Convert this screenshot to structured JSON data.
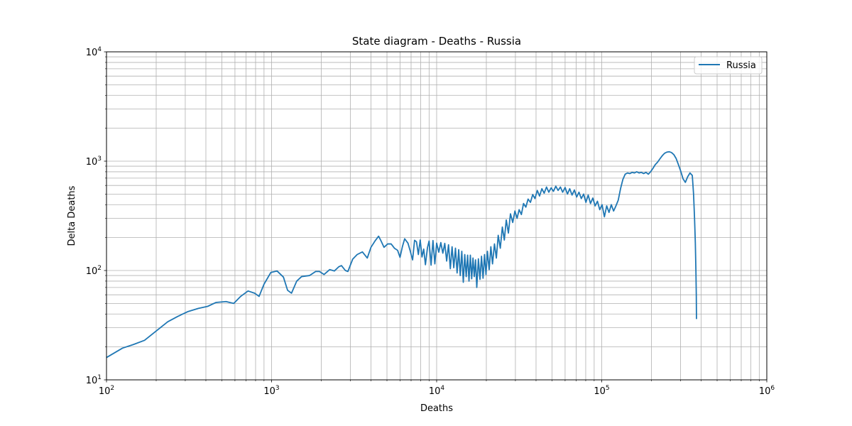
{
  "chart_data": {
    "type": "line",
    "title": "State diagram - Deaths - Russia",
    "xlabel": "Deaths",
    "ylabel": "Delta Deaths",
    "xscale": "log",
    "yscale": "log",
    "xlim": [
      100,
      1000000
    ],
    "ylim": [
      10,
      10000
    ],
    "grid": true,
    "grid_which": "both",
    "legend_position": "top-right",
    "x_ticks": [
      {
        "base": "10",
        "exp": "2"
      },
      {
        "base": "10",
        "exp": "3"
      },
      {
        "base": "10",
        "exp": "4"
      },
      {
        "base": "10",
        "exp": "5"
      },
      {
        "base": "10",
        "exp": "6"
      }
    ],
    "y_ticks": [
      {
        "base": "10",
        "exp": "1"
      },
      {
        "base": "10",
        "exp": "2"
      },
      {
        "base": "10",
        "exp": "3"
      },
      {
        "base": "10",
        "exp": "4"
      }
    ],
    "series": [
      {
        "name": "Russia",
        "color": "#1f77b4",
        "points": [
          [
            100,
            16
          ],
          [
            125,
            19.5
          ],
          [
            145,
            21
          ],
          [
            170,
            23
          ],
          [
            200,
            28
          ],
          [
            235,
            34
          ],
          [
            270,
            38
          ],
          [
            310,
            42
          ],
          [
            360,
            45
          ],
          [
            410,
            47
          ],
          [
            460,
            51
          ],
          [
            530,
            52
          ],
          [
            590,
            50
          ],
          [
            650,
            58
          ],
          [
            720,
            65
          ],
          [
            790,
            62
          ],
          [
            840,
            58
          ],
          [
            900,
            75
          ],
          [
            990,
            96
          ],
          [
            1080,
            99
          ],
          [
            1180,
            87
          ],
          [
            1250,
            66
          ],
          [
            1320,
            62
          ],
          [
            1420,
            80
          ],
          [
            1520,
            88
          ],
          [
            1700,
            90
          ],
          [
            1850,
            98
          ],
          [
            1950,
            98
          ],
          [
            2080,
            92
          ],
          [
            2250,
            102
          ],
          [
            2400,
            99
          ],
          [
            2550,
            108
          ],
          [
            2650,
            111
          ],
          [
            2800,
            100
          ],
          [
            2900,
            98
          ],
          [
            3100,
            127
          ],
          [
            3300,
            140
          ],
          [
            3550,
            148
          ],
          [
            3800,
            130
          ],
          [
            4000,
            163
          ],
          [
            4250,
            188
          ],
          [
            4450,
            206
          ],
          [
            4600,
            187
          ],
          [
            4800,
            163
          ],
          [
            5050,
            175
          ],
          [
            5300,
            175
          ],
          [
            5550,
            160
          ],
          [
            5800,
            153
          ],
          [
            6000,
            132
          ],
          [
            6200,
            165
          ],
          [
            6400,
            195
          ],
          [
            6700,
            178
          ],
          [
            6900,
            153
          ],
          [
            7150,
            125
          ],
          [
            7350,
            189
          ],
          [
            7550,
            183
          ],
          [
            7750,
            140
          ],
          [
            7950,
            190
          ],
          [
            8150,
            133
          ],
          [
            8350,
            157
          ],
          [
            8550,
            113
          ],
          [
            8800,
            162
          ],
          [
            9000,
            186
          ],
          [
            9250,
            112
          ],
          [
            9500,
            188
          ],
          [
            9750,
            115
          ],
          [
            10000,
            178
          ],
          [
            10300,
            147
          ],
          [
            10600,
            180
          ],
          [
            10900,
            144
          ],
          [
            11200,
            177
          ],
          [
            11500,
            122
          ],
          [
            11800,
            172
          ],
          [
            12100,
            104
          ],
          [
            12400,
            165
          ],
          [
            12700,
            106
          ],
          [
            13000,
            160
          ],
          [
            13300,
            95
          ],
          [
            13600,
            155
          ],
          [
            13900,
            90
          ],
          [
            14200,
            150
          ],
          [
            14500,
            78
          ],
          [
            14800,
            140
          ],
          [
            15100,
            88
          ],
          [
            15400,
            138
          ],
          [
            15700,
            80
          ],
          [
            16000,
            138
          ],
          [
            16300,
            84
          ],
          [
            16600,
            130
          ],
          [
            16900,
            88
          ],
          [
            17200,
            125
          ],
          [
            17500,
            70
          ],
          [
            17900,
            128
          ],
          [
            18300,
            83
          ],
          [
            18700,
            135
          ],
          [
            19100,
            85
          ],
          [
            19500,
            140
          ],
          [
            19900,
            92
          ],
          [
            20300,
            150
          ],
          [
            20800,
            102
          ],
          [
            21300,
            165
          ],
          [
            21800,
            115
          ],
          [
            22400,
            175
          ],
          [
            23000,
            130
          ],
          [
            23600,
            210
          ],
          [
            24300,
            160
          ],
          [
            25000,
            250
          ],
          [
            25700,
            190
          ],
          [
            26400,
            290
          ],
          [
            27200,
            220
          ],
          [
            28000,
            330
          ],
          [
            28900,
            275
          ],
          [
            29800,
            350
          ],
          [
            30700,
            300
          ],
          [
            31600,
            360
          ],
          [
            32600,
            325
          ],
          [
            33600,
            410
          ],
          [
            34700,
            380
          ],
          [
            35800,
            450
          ],
          [
            37000,
            420
          ],
          [
            38200,
            495
          ],
          [
            39400,
            455
          ],
          [
            40700,
            540
          ],
          [
            42000,
            480
          ],
          [
            43400,
            560
          ],
          [
            44800,
            510
          ],
          [
            46300,
            580
          ],
          [
            47800,
            520
          ],
          [
            49400,
            570
          ],
          [
            51000,
            530
          ],
          [
            52700,
            590
          ],
          [
            54400,
            540
          ],
          [
            56200,
            580
          ],
          [
            58000,
            520
          ],
          [
            60000,
            575
          ],
          [
            62000,
            500
          ],
          [
            64000,
            560
          ],
          [
            66100,
            490
          ],
          [
            68300,
            545
          ],
          [
            70500,
            470
          ],
          [
            72800,
            520
          ],
          [
            75200,
            455
          ],
          [
            77700,
            500
          ],
          [
            80200,
            420
          ],
          [
            82800,
            490
          ],
          [
            85500,
            410
          ],
          [
            88300,
            460
          ],
          [
            91200,
            390
          ],
          [
            94200,
            430
          ],
          [
            97300,
            360
          ],
          [
            100500,
            400
          ],
          [
            103800,
            310
          ],
          [
            107200,
            390
          ],
          [
            110700,
            340
          ],
          [
            114300,
            400
          ],
          [
            118000,
            350
          ],
          [
            121900,
            390
          ],
          [
            125900,
            440
          ],
          [
            130000,
            560
          ],
          [
            134300,
            680
          ],
          [
            138700,
            760
          ],
          [
            143300,
            780
          ],
          [
            148000,
            770
          ],
          [
            152800,
            790
          ],
          [
            157800,
            780
          ],
          [
            163000,
            800
          ],
          [
            168300,
            780
          ],
          [
            173800,
            790
          ],
          [
            179500,
            770
          ],
          [
            185400,
            790
          ],
          [
            191500,
            760
          ],
          [
            197800,
            800
          ],
          [
            204300,
            860
          ],
          [
            211000,
            930
          ],
          [
            218000,
            980
          ],
          [
            225100,
            1050
          ],
          [
            232500,
            1120
          ],
          [
            240100,
            1180
          ],
          [
            248000,
            1210
          ],
          [
            256100,
            1220
          ],
          [
            264500,
            1200
          ],
          [
            273200,
            1150
          ],
          [
            282200,
            1060
          ],
          [
            291400,
            930
          ],
          [
            301000,
            810
          ],
          [
            310900,
            690
          ],
          [
            321100,
            640
          ],
          [
            331600,
            720
          ],
          [
            342500,
            780
          ],
          [
            353700,
            740
          ],
          [
            360000,
            500
          ],
          [
            365000,
            300
          ],
          [
            369000,
            180
          ],
          [
            372000,
            100
          ],
          [
            374000,
            60
          ],
          [
            375000,
            36
          ]
        ]
      }
    ]
  }
}
